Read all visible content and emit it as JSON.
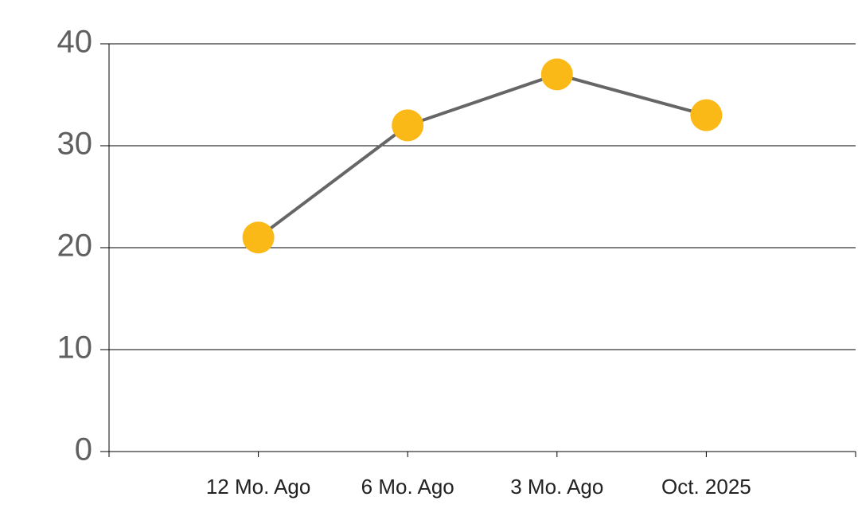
{
  "chart_data": {
    "type": "line",
    "categories": [
      "12 Mo. Ago",
      "6 Mo. Ago",
      "3 Mo. Ago",
      "Oct. 2025"
    ],
    "values": [
      21,
      32,
      37,
      33
    ],
    "line_color": "#666666",
    "marker_color": "#fbb917",
    "ylim": [
      0,
      40
    ],
    "yticks": [
      0,
      10,
      20,
      30,
      40
    ],
    "grid": true
  }
}
